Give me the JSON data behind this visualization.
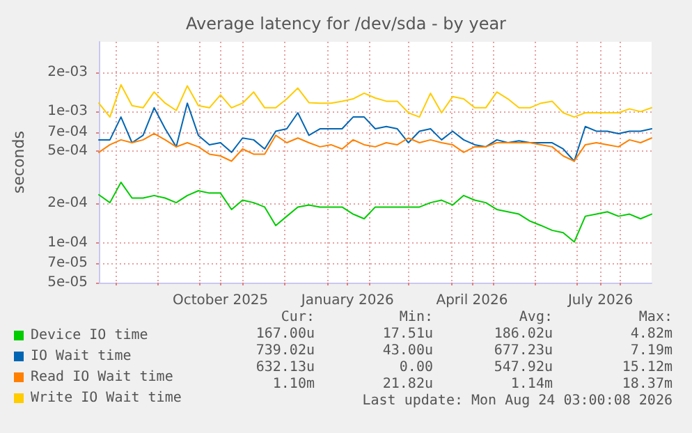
{
  "chart_data": {
    "type": "line",
    "title": "Average latency for /dev/sda - by year",
    "ylabel": "seconds",
    "log": true,
    "grid": true,
    "legend": "bottom left",
    "x": [
      "2025-07-20",
      "2025-07-28",
      "2025-08-05",
      "2025-08-13",
      "2025-08-21",
      "2025-08-29",
      "2025-09-06",
      "2025-09-14",
      "2025-09-22",
      "2025-09-30",
      "2025-10-08",
      "2025-10-16",
      "2025-10-24",
      "2025-11-01",
      "2025-11-09",
      "2025-11-17",
      "2025-11-25",
      "2025-12-03",
      "2025-12-11",
      "2025-12-19",
      "2025-12-27",
      "2026-01-04",
      "2026-01-12",
      "2026-01-20",
      "2026-01-28",
      "2026-02-05",
      "2026-02-13",
      "2026-02-21",
      "2026-03-01",
      "2026-03-09",
      "2026-03-17",
      "2026-03-25",
      "2026-04-02",
      "2026-04-10",
      "2026-04-18",
      "2026-04-26",
      "2026-05-04",
      "2026-05-12",
      "2026-05-20",
      "2026-05-28",
      "2026-06-05",
      "2026-06-13",
      "2026-06-21",
      "2026-06-29",
      "2026-07-07",
      "2026-07-15",
      "2026-07-23",
      "2026-07-31",
      "2026-08-08",
      "2026-08-16",
      "2026-08-24"
    ],
    "series": [
      {
        "name": "Device IO time",
        "color": "#00cc00",
        "values": [
          0.000233,
          0.000203,
          0.00029,
          0.00022,
          0.00022,
          0.00023,
          0.00022,
          0.000203,
          0.00023,
          0.00025,
          0.00024,
          0.00024,
          0.00018,
          0.000212,
          0.000203,
          0.000188,
          0.000136,
          0.00016,
          0.000188,
          0.000195,
          0.000188,
          0.000188,
          0.000188,
          0.000166,
          0.000153,
          0.000188,
          0.000188,
          0.000188,
          0.000188,
          0.000188,
          0.000203,
          0.000212,
          0.000195,
          0.00023,
          0.000212,
          0.000203,
          0.00018,
          0.000173,
          0.000166,
          0.000147,
          0.000136,
          0.000125,
          0.00012,
          0.000102,
          0.00016,
          0.000166,
          0.000173,
          0.00016,
          0.000166,
          0.000153,
          0.000166
        ]
      },
      {
        "name": "IO Wait time",
        "color": "#0066b3",
        "values": [
          0.00061,
          0.00061,
          0.00091,
          0.00058,
          0.00066,
          0.00107,
          0.00074,
          0.00054,
          0.00116,
          0.00066,
          0.00056,
          0.00058,
          0.00049,
          0.00063,
          0.00061,
          0.00052,
          0.00071,
          0.00074,
          0.00098,
          0.00066,
          0.00074,
          0.00074,
          0.00074,
          0.00091,
          0.00091,
          0.00074,
          0.00077,
          0.00074,
          0.00058,
          0.00071,
          0.00074,
          0.00061,
          0.00071,
          0.00061,
          0.00056,
          0.00054,
          0.00061,
          0.00058,
          0.0006,
          0.00058,
          0.00058,
          0.00058,
          0.00052,
          0.00042,
          0.00077,
          0.00071,
          0.00071,
          0.00068,
          0.00071,
          0.00071,
          0.00074
        ]
      },
      {
        "name": "Read IO Wait time",
        "color": "#ff8000",
        "values": [
          0.00049,
          0.00056,
          0.00061,
          0.00058,
          0.00061,
          0.00068,
          0.00061,
          0.00054,
          0.00058,
          0.00054,
          0.000475,
          0.00046,
          0.00042,
          0.00052,
          0.000475,
          0.000475,
          0.00066,
          0.00058,
          0.00063,
          0.00058,
          0.00054,
          0.00056,
          0.00052,
          0.00061,
          0.00056,
          0.00054,
          0.00058,
          0.00056,
          0.00063,
          0.00058,
          0.00061,
          0.00058,
          0.00056,
          0.00049,
          0.00054,
          0.00054,
          0.00058,
          0.00058,
          0.00058,
          0.00058,
          0.00056,
          0.00054,
          0.00046,
          0.00042,
          0.00056,
          0.00058,
          0.00056,
          0.00054,
          0.00061,
          0.00058,
          0.00063
        ]
      },
      {
        "name": "Write IO Wait time",
        "color": "#ffcc00",
        "values": [
          0.00116,
          0.00091,
          0.0016,
          0.00111,
          0.00107,
          0.00141,
          0.00116,
          0.00102,
          0.00157,
          0.00111,
          0.00107,
          0.00134,
          0.00107,
          0.00116,
          0.00141,
          0.00107,
          0.00107,
          0.00125,
          0.00151,
          0.00117,
          0.00116,
          0.00116,
          0.0012,
          0.00125,
          0.00138,
          0.00127,
          0.0012,
          0.0012,
          0.00098,
          0.00091,
          0.00138,
          0.00098,
          0.0013,
          0.00125,
          0.00107,
          0.00107,
          0.00141,
          0.00125,
          0.00107,
          0.00107,
          0.00116,
          0.0012,
          0.00098,
          0.00091,
          0.00098,
          0.00098,
          0.00098,
          0.00098,
          0.00105,
          0.001,
          0.00107
        ]
      }
    ],
    "xlim": [
      "2025-07-20",
      "2026-08-24"
    ],
    "xticks": [
      {
        "value": "2025-08-01",
        "label": null
      },
      {
        "value": "2025-09-01",
        "label": null
      },
      {
        "value": "2025-10-01",
        "label": null
      },
      {
        "value": "2025-10-16",
        "label": "October 2025"
      },
      {
        "value": "2025-11-01",
        "label": null
      },
      {
        "value": "2025-12-01",
        "label": null
      },
      {
        "value": "2026-01-01",
        "label": null
      },
      {
        "value": "2026-01-16",
        "label": "January 2026"
      },
      {
        "value": "2026-02-01",
        "label": null
      },
      {
        "value": "2026-03-01",
        "label": null
      },
      {
        "value": "2026-04-01",
        "label": null
      },
      {
        "value": "2026-04-16",
        "label": "April 2026"
      },
      {
        "value": "2026-05-01",
        "label": null
      },
      {
        "value": "2026-06-01",
        "label": null
      },
      {
        "value": "2026-07-01",
        "label": null
      },
      {
        "value": "2026-07-18",
        "label": "July 2026"
      },
      {
        "value": "2026-08-01",
        "label": null
      }
    ],
    "ylim": [
      5e-05,
      0.0034
    ],
    "yticks": [
      {
        "value": 5e-05,
        "label": "5e-05"
      },
      {
        "value": 7e-05,
        "label": "7e-05"
      },
      {
        "value": 0.0001,
        "label": "1e-04"
      },
      {
        "value": 0.0002,
        "label": "2e-04"
      },
      {
        "value": 0.0005,
        "label": "5e-04"
      },
      {
        "value": 0.0007,
        "label": "7e-04"
      },
      {
        "value": 0.001,
        "label": "1e-03"
      },
      {
        "value": 0.002,
        "label": "2e-03"
      }
    ],
    "annotations": [
      "Cur:",
      "Min:",
      "Avg:",
      "Max:",
      "167.00u",
      "17.51u",
      "186.02u",
      "4.82m",
      "739.02u",
      "43.00u",
      "677.23u",
      "7.19m",
      "632.13u",
      "0.00",
      "547.92u",
      "15.12m",
      "1.10m",
      "21.82u",
      "1.14m",
      "18.37m",
      "Last update: Mon Aug 24 03:00:08 2026"
    ]
  }
}
